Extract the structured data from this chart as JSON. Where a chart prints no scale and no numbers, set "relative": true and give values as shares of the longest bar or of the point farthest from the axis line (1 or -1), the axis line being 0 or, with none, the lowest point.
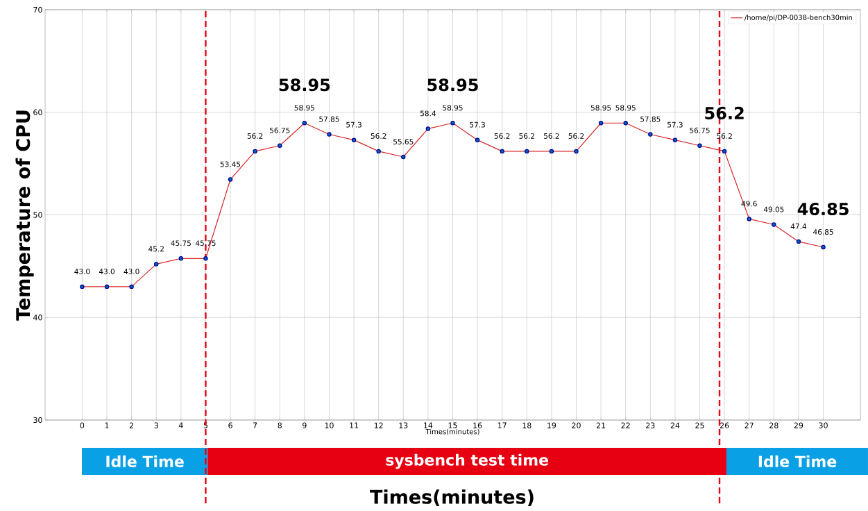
{
  "chart_data": [
    {
      "type": "line",
      "xlabel": "Times(minutes)",
      "ylabel": "Temperature of CPU",
      "x": [
        0,
        1,
        2,
        3,
        4,
        5,
        6,
        7,
        8,
        9,
        10,
        11,
        12,
        13,
        14,
        15,
        16,
        17,
        18,
        19,
        20,
        21,
        22,
        23,
        24,
        25,
        26,
        27,
        28,
        29,
        30
      ],
      "xlim": [
        -1.5,
        31.5
      ],
      "xticks": [
        0,
        1,
        2,
        3,
        4,
        5,
        6,
        7,
        8,
        9,
        10,
        11,
        12,
        13,
        14,
        15,
        16,
        17,
        18,
        19,
        20,
        21,
        22,
        23,
        24,
        25,
        26,
        27,
        28,
        29,
        30
      ],
      "ylim": [
        30,
        70
      ],
      "yticks": [
        30,
        40,
        50,
        60,
        70
      ],
      "grid": true,
      "legend": "top right",
      "marker": "circle",
      "line_style": "solid",
      "series": [
        {
          "name": "/home/pi/DP-0038-bench30min",
          "color": "#d62728",
          "values": [
            43.0,
            43.0,
            43.0,
            45.2,
            45.75,
            45.75,
            53.45,
            56.2,
            56.75,
            58.95,
            57.85,
            57.3,
            56.2,
            55.65,
            58.4,
            58.95,
            57.3,
            56.2,
            56.2,
            56.2,
            56.2,
            58.95,
            58.95,
            57.85,
            57.3,
            56.75,
            56.2,
            49.6,
            49.05,
            47.4,
            46.85
          ],
          "value_labels": [
            "43.0",
            "43.0",
            "43.0",
            "45.2",
            "45.75",
            "45.75",
            "53.45",
            "56.2",
            "56.75",
            "58.95",
            "57.85",
            "57.3",
            "56.2",
            "55.65",
            "58.4",
            "58.95",
            "57.3",
            "56.2",
            "56.2",
            "56.2",
            "56.2",
            "58.95",
            "58.95",
            "57.85",
            "57.3",
            "56.75",
            "56.2",
            "49.6",
            "49.05",
            "47.4",
            "46.85"
          ]
        }
      ],
      "ref_lines": [
        {
          "axis": "x",
          "value": 5,
          "color": "#e60012",
          "line_style": "dashed"
        },
        {
          "axis": "x",
          "value": 25.8,
          "color": "#e60012",
          "line_style": "dashed"
        }
      ],
      "annotations": [
        {
          "text": "58.95",
          "x": 9,
          "y": 58.95
        },
        {
          "text": "58.95",
          "x": 15,
          "y": 58.95
        },
        {
          "text": "56.2",
          "x": 26,
          "y": 56.2
        },
        {
          "text": "46.85",
          "x": 30,
          "y": 46.85
        },
        "Times(minutes)"
      ]
    },
    {
      "type": "bar",
      "orientation": "horizontal",
      "stacked": true,
      "relative": true,
      "categories": [
        null
      ],
      "series": [
        {
          "name": "Idle Time",
          "color": "#0aa0e6",
          "values": [
            0.16
          ]
        },
        {
          "name": "sysbench test time",
          "color": "#e60012",
          "values": [
            0.66
          ]
        },
        {
          "name": "Idle Time",
          "color": "#0aa0e6",
          "values": [
            0.18
          ]
        }
      ]
    }
  ]
}
